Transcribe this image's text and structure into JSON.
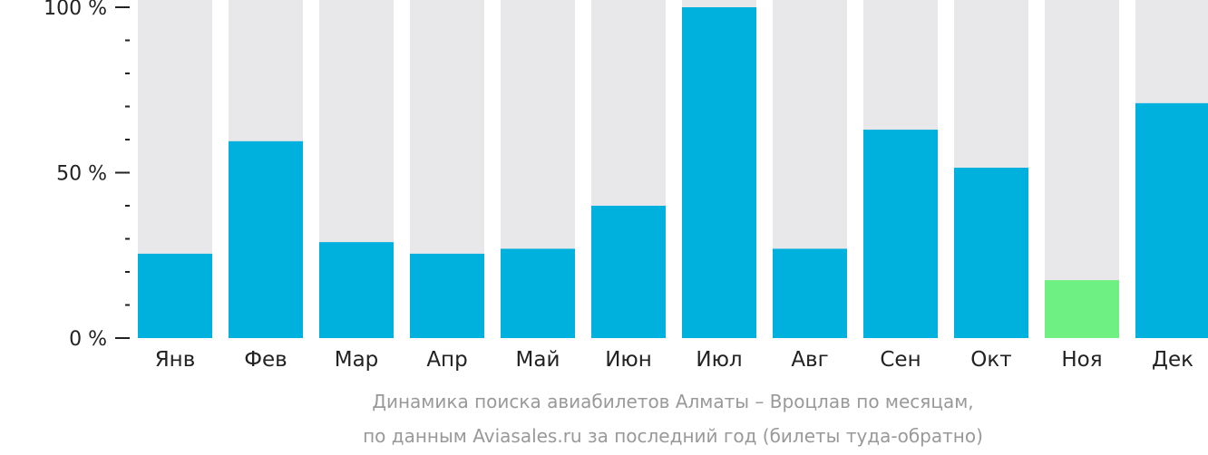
{
  "chart_data": {
    "type": "bar",
    "categories": [
      "Янв",
      "Фев",
      "Мар",
      "Апр",
      "Май",
      "Июн",
      "Июл",
      "Авг",
      "Сен",
      "Окт",
      "Ноя",
      "Дек"
    ],
    "values": [
      25.5,
      59.5,
      29,
      25.5,
      27,
      40,
      100,
      27,
      63,
      51.5,
      17.5,
      71
    ],
    "ylim": [
      0,
      100
    ],
    "yticks": [
      {
        "value": 100,
        "label": "100 %"
      },
      {
        "value": 50,
        "label": "50 %"
      },
      {
        "value": 0,
        "label": "0 %"
      }
    ],
    "minor_tick_step": 10,
    "caption": [
      "Динамика поиска авиабилетов Алматы – Вроцлав по месяцам,",
      "по данным Aviasales.ru за последний год (билеты туда-обратно)"
    ],
    "highlight_index": 10,
    "colors": {
      "bar": "#00b0dd",
      "highlight": "#6ff082",
      "background_bar": "#e8e8ea",
      "tick": "#222222",
      "caption": "#999999"
    }
  }
}
